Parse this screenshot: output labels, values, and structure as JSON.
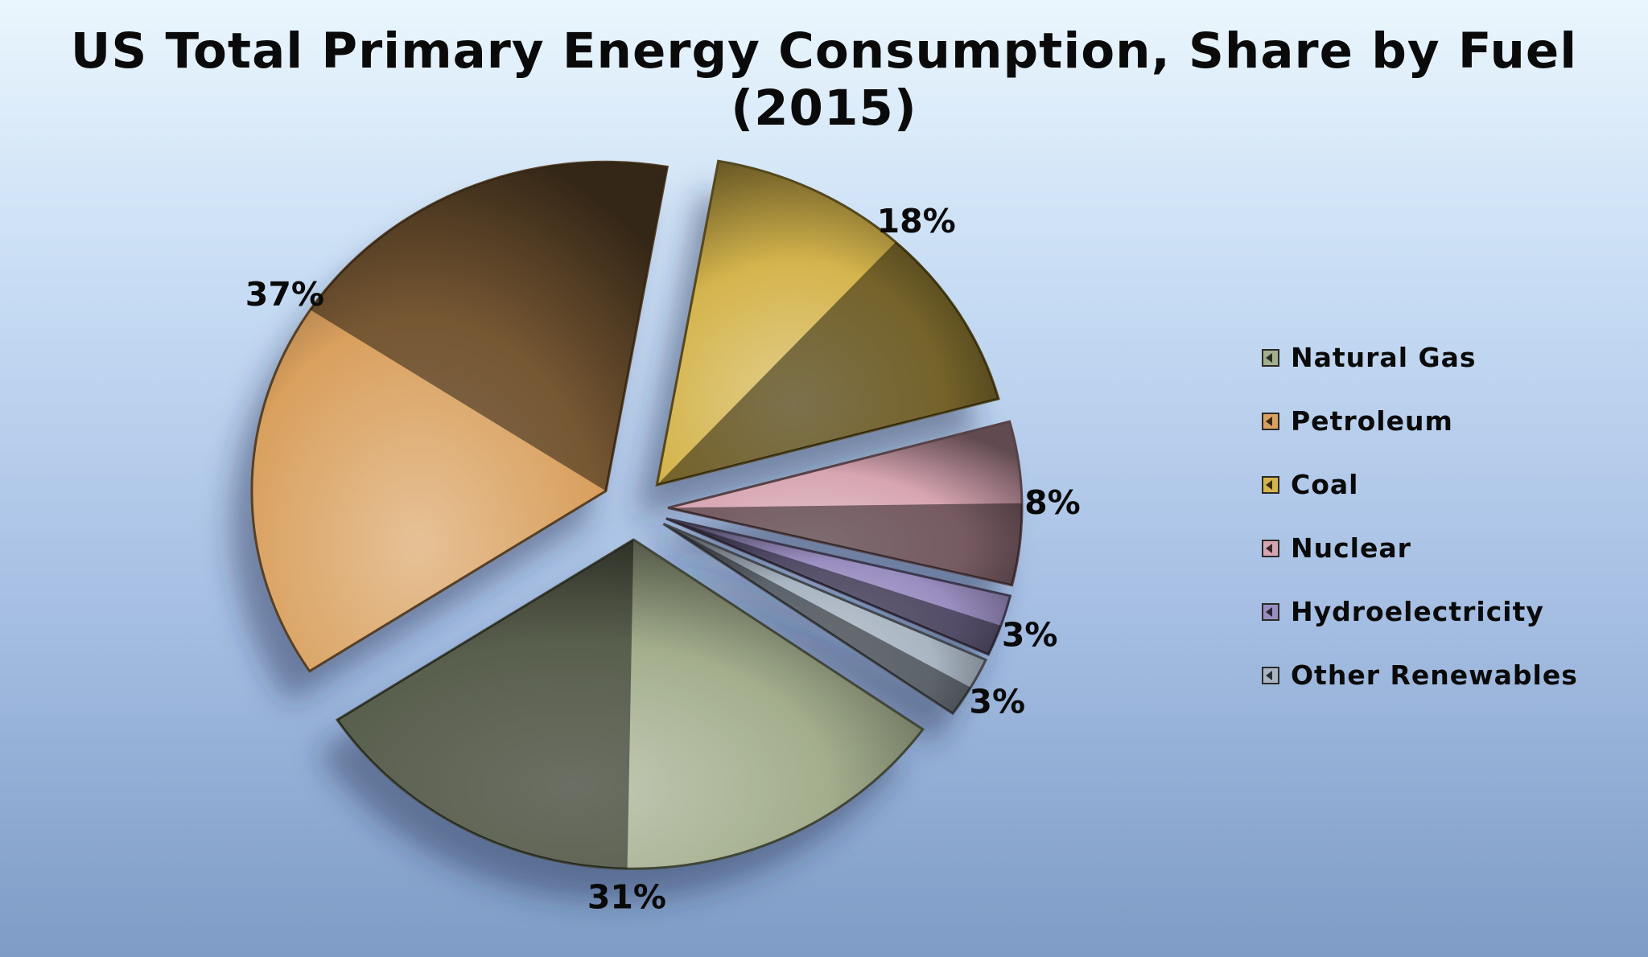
{
  "chart_data": {
    "type": "pie",
    "title": "US Total Primary Energy Consumption, Share by Fuel (2015)",
    "legend_position": "right",
    "series": [
      {
        "categories": [
          "Natural Gas",
          "Petroleum",
          "Coal",
          "Nuclear",
          "Hydroelectricity",
          "Other Renewables"
        ],
        "values": [
          31,
          37,
          18,
          8,
          3,
          3
        ],
        "labels": [
          "31%",
          "37%",
          "18%",
          "8%",
          "3%",
          "3%"
        ],
        "colors": [
          "#a3ae8d",
          "#d9a05e",
          "#d4b44c",
          "#d7a5b2",
          "#9a8dc0",
          "#a9b5c2"
        ]
      }
    ]
  }
}
